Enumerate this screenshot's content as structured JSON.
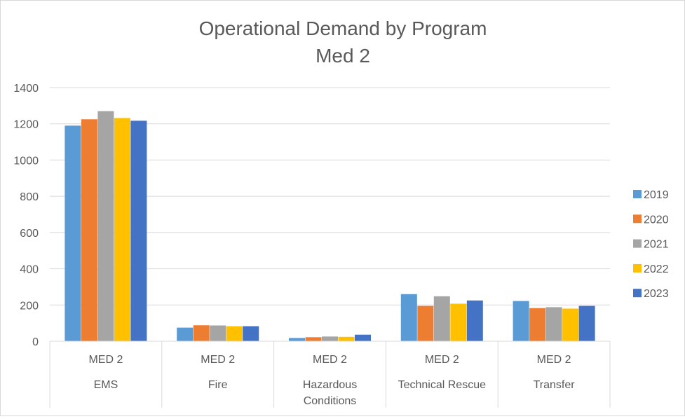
{
  "chart_data": {
    "type": "bar",
    "title": "Operational Demand by Program",
    "subtitle": "Med 2",
    "xlabel": "",
    "ylabel": "",
    "ylim": [
      0,
      1400
    ],
    "yticks": [
      0,
      200,
      400,
      600,
      800,
      1000,
      1200,
      1400
    ],
    "grid": true,
    "legend_position": "right",
    "categories": [
      {
        "group": "MED 2",
        "label": [
          "EMS"
        ]
      },
      {
        "group": "MED 2",
        "label": [
          "Fire"
        ]
      },
      {
        "group": "MED 2",
        "label": [
          "Hazardous",
          "Conditions"
        ]
      },
      {
        "group": "MED 2",
        "label": [
          "Technical Rescue"
        ]
      },
      {
        "group": "MED 2",
        "label": [
          "Transfer"
        ]
      }
    ],
    "series": [
      {
        "name": "2019",
        "color": "#5b9bd5",
        "values": [
          1190,
          75,
          18,
          260,
          222
        ]
      },
      {
        "name": "2020",
        "color": "#ed7d31",
        "values": [
          1225,
          88,
          22,
          195,
          183
        ]
      },
      {
        "name": "2021",
        "color": "#a5a5a5",
        "values": [
          1270,
          87,
          26,
          248,
          188
        ]
      },
      {
        "name": "2022",
        "color": "#ffc000",
        "values": [
          1232,
          83,
          24,
          207,
          180
        ]
      },
      {
        "name": "2023",
        "color": "#4472c4",
        "values": [
          1217,
          83,
          36,
          225,
          195
        ]
      }
    ]
  }
}
